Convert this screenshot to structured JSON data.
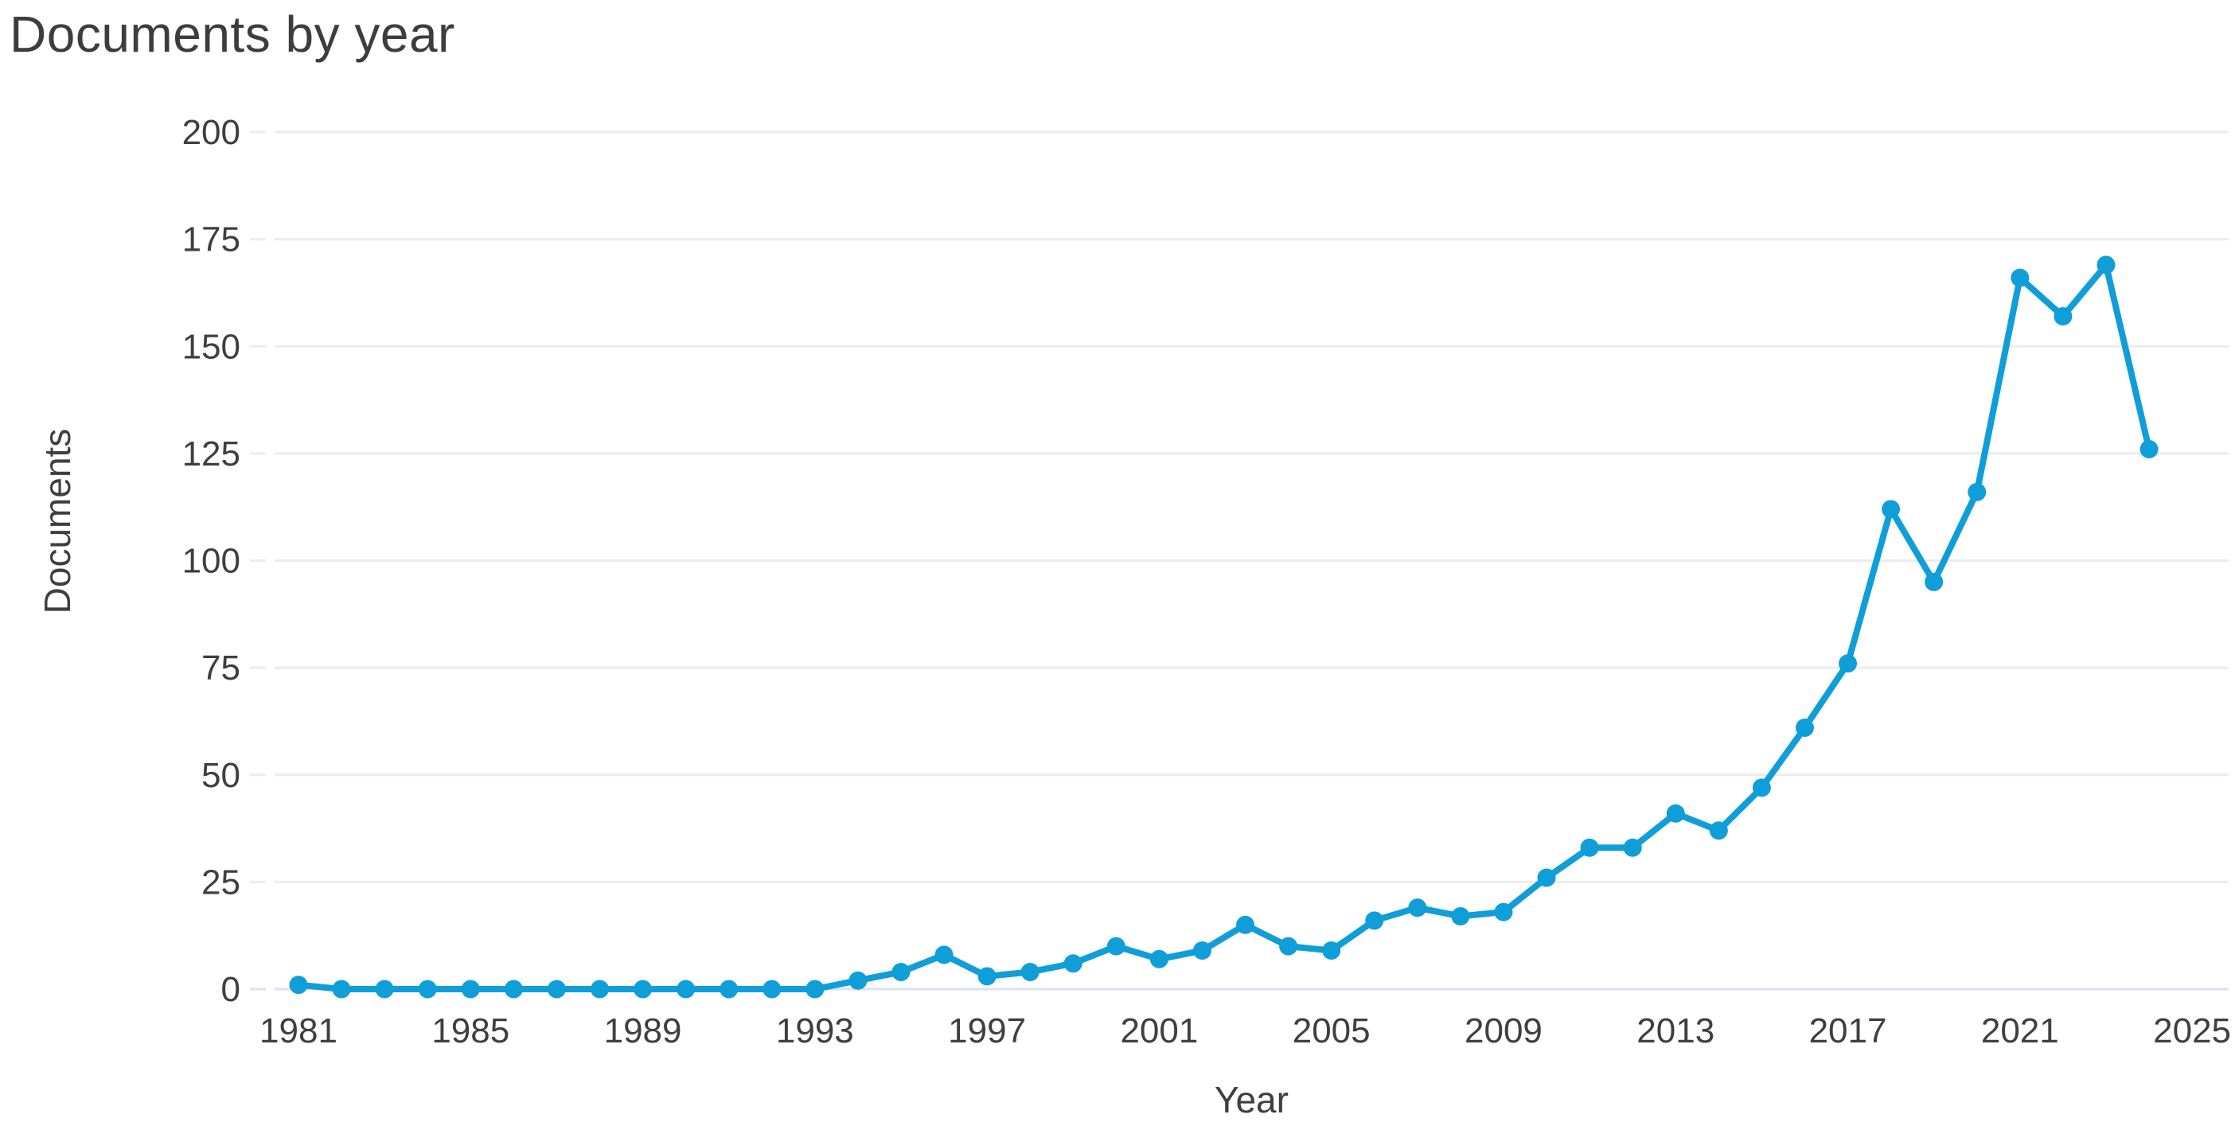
{
  "page": {
    "title": "Documents by year"
  },
  "colors": {
    "line": "#0f9ed8",
    "marker": "#0f9ed8",
    "grid": "#ececec",
    "zero_grid": "#dce1f4",
    "text": "#3f3f3f",
    "title_text": "#3d3d3d",
    "background": "#ffffff"
  },
  "chart_data": {
    "type": "line",
    "title": "Documents by year",
    "xlabel": "Year",
    "ylabel": "Documents",
    "series_name": "Documents",
    "x": [
      1981,
      1982,
      1983,
      1984,
      1985,
      1986,
      1987,
      1988,
      1989,
      1990,
      1991,
      1992,
      1993,
      1994,
      1995,
      1996,
      1997,
      1998,
      1999,
      2000,
      2001,
      2002,
      2003,
      2004,
      2005,
      2006,
      2007,
      2008,
      2009,
      2010,
      2011,
      2012,
      2013,
      2014,
      2015,
      2016,
      2017,
      2018,
      2019,
      2020,
      2021,
      2022,
      2023,
      2024
    ],
    "values": [
      1,
      0,
      0,
      0,
      0,
      0,
      0,
      0,
      0,
      0,
      0,
      0,
      0,
      2,
      4,
      8,
      3,
      4,
      6,
      10,
      7,
      9,
      15,
      10,
      9,
      16,
      19,
      17,
      18,
      26,
      33,
      33,
      41,
      37,
      47,
      61,
      76,
      112,
      95,
      116,
      166,
      157,
      169,
      126
    ],
    "x_tick_labels": [
      "1981",
      "1985",
      "1989",
      "1993",
      "1997",
      "2001",
      "2005",
      "2009",
      "2013",
      "2017",
      "2021",
      "2025"
    ],
    "y_ticks": [
      0,
      25,
      50,
      75,
      100,
      125,
      150,
      175,
      200
    ],
    "xlim": [
      1981,
      2025
    ],
    "ylim": [
      0,
      200
    ],
    "grid": "horizontal",
    "legend": "none",
    "marker": "circle"
  }
}
